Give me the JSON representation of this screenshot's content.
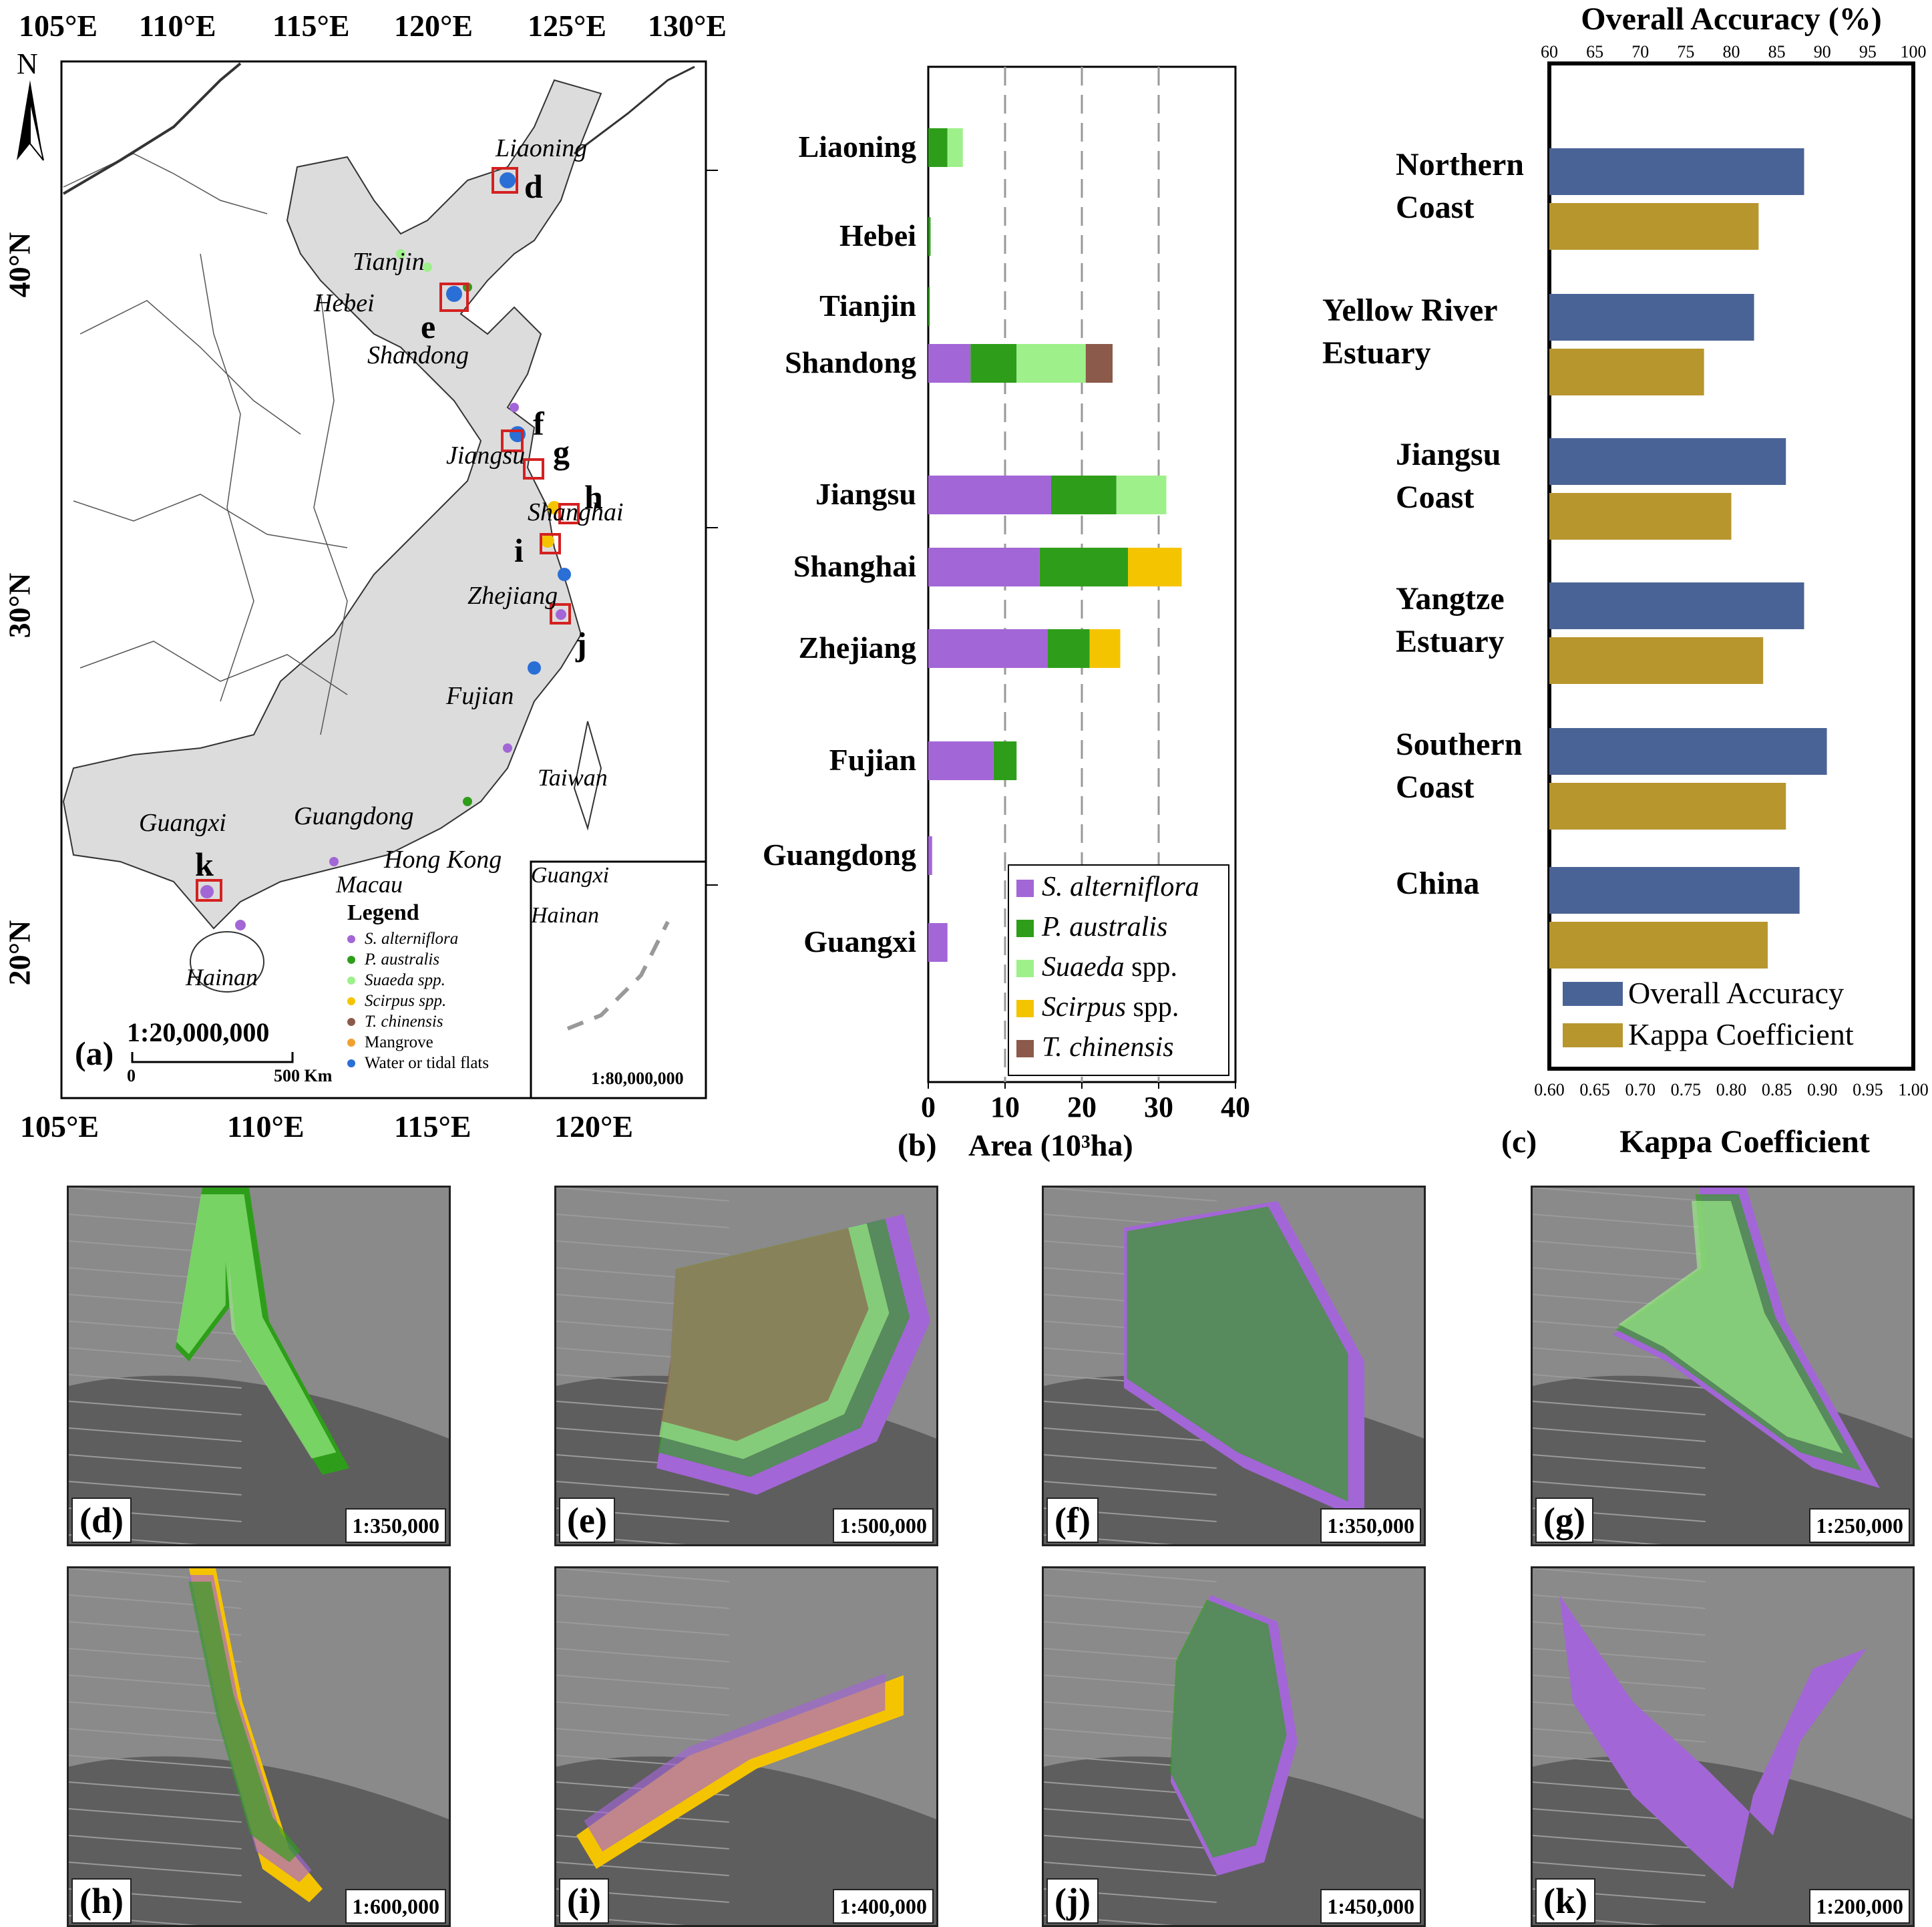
{
  "map": {
    "panel_label": "(a)",
    "top_lon": [
      "105°E",
      "110°E",
      "115°E",
      "120°E",
      "125°E",
      "130°E"
    ],
    "bottom_lon": [
      "105°E",
      "110°E",
      "115°E",
      "120°E"
    ],
    "lat": [
      "40°N",
      "30°N",
      "20°N"
    ],
    "north": "N",
    "provinces": [
      "Liaoning",
      "Tianjin",
      "Hebei",
      "Shandong",
      "Jiangsu",
      "Shanghai",
      "Zhejiang",
      "Fujian",
      "Taiwan",
      "Guangxi",
      "Guangdong",
      "Hong Kong",
      "Macau",
      "Hainan"
    ],
    "site_letters": [
      "d",
      "e",
      "f",
      "g",
      "h",
      "i",
      "j",
      "k"
    ],
    "legend_title": "Legend",
    "legend": [
      {
        "label": "S. alterniflora",
        "color": "#a366d6",
        "italic": true
      },
      {
        "label": "P. australis",
        "color": "#2e9e1a",
        "italic": true
      },
      {
        "label": "Suaeda spp.",
        "color": "#9ef08a",
        "italic": true
      },
      {
        "label": "Scirpus spp.",
        "color": "#f5c400",
        "italic": true
      },
      {
        "label": "T. chinensis",
        "color": "#8b5a4a",
        "italic": true
      },
      {
        "label": "Mangrove",
        "color": "#f0a030",
        "italic": false
      },
      {
        "label": "Water or tidal flats",
        "color": "#2a6fd6",
        "italic": false
      }
    ],
    "scale_ratio": "1:20,000,000",
    "scale_start": "0",
    "scale_end": "500 Km",
    "inset_labels": [
      "Guangxi",
      "Hainan"
    ],
    "inset_scale": "1:80,000,000"
  },
  "panel_b": {
    "panel_label": "(b)",
    "xlabel": "Area (10³ha)",
    "xticks": [
      "0",
      "10",
      "20",
      "30",
      "40"
    ]
  },
  "panel_c": {
    "panel_label": "(c)",
    "top_title": "Overall Accuracy (%)",
    "top_ticks": [
      "60",
      "65",
      "70",
      "75",
      "80",
      "85",
      "90",
      "95",
      "100"
    ],
    "bottom_title": "Kappa Coefficient",
    "bottom_ticks": [
      "0.60",
      "0.65",
      "0.70",
      "0.75",
      "0.80",
      "0.85",
      "0.90",
      "0.95",
      "1.00"
    ]
  },
  "chart_data": [
    {
      "type": "bar",
      "orientation": "horizontal",
      "stacked": true,
      "xlabel": "Area (10³ha)",
      "xlim": [
        0,
        40
      ],
      "grid": "dashed vertical at 10, 20, 30",
      "legend_position": "bottom-right",
      "categories": [
        "Liaoning",
        "Hebei",
        "Tianjin",
        "Shandong",
        "Jiangsu",
        "Shanghai",
        "Zhejiang",
        "Fujian",
        "Guangdong",
        "Guangxi"
      ],
      "series": [
        {
          "name": "S. alterniflora",
          "color": "#a366d6",
          "values": [
            0,
            0,
            0,
            5.5,
            16,
            14.5,
            15.5,
            8.5,
            0.5,
            2.5
          ]
        },
        {
          "name": "P. australis",
          "color": "#2e9e1a",
          "values": [
            2.5,
            0.3,
            0.2,
            6,
            8.5,
            11.5,
            5.5,
            3,
            0,
            0
          ]
        },
        {
          "name": "Suaeda spp.",
          "color": "#9ef08a",
          "values": [
            2,
            0,
            0,
            9,
            6.5,
            0,
            0,
            0,
            0,
            0
          ]
        },
        {
          "name": "Scirpus spp.",
          "color": "#f5c400",
          "values": [
            0,
            0,
            0,
            0,
            0,
            7,
            4,
            0,
            0,
            0
          ]
        },
        {
          "name": "T. chinensis",
          "color": "#8b5a4a",
          "values": [
            0,
            0,
            0,
            3.5,
            0,
            0,
            0,
            0,
            0,
            0
          ]
        }
      ]
    },
    {
      "type": "bar",
      "orientation": "horizontal",
      "xlabel_top": "Overall Accuracy (%)",
      "xlim_top": [
        60,
        100
      ],
      "xlabel_bottom": "Kappa Coefficient",
      "xlim_bottom": [
        0.6,
        1.0
      ],
      "legend_position": "bottom-right",
      "categories": [
        [
          "Northern",
          "Coast"
        ],
        [
          "Yellow River",
          "Estuary"
        ],
        [
          "Jiangsu",
          "Coast"
        ],
        [
          "Yangtze",
          "Estuary"
        ],
        [
          "Southern",
          "Coast"
        ],
        [
          "China"
        ]
      ],
      "series": [
        {
          "name": "Overall Accuracy",
          "color": "#4a6396",
          "axis": "top",
          "values": [
            88,
            82.5,
            86,
            88,
            90.5,
            87.5
          ]
        },
        {
          "name": "Kappa Coefficient",
          "color": "#b8962e",
          "axis": "bottom",
          "values": [
            0.83,
            0.77,
            0.8,
            0.835,
            0.86,
            0.84
          ]
        }
      ]
    }
  ],
  "tiles": [
    {
      "label": "(d)",
      "scale": "1:350,000"
    },
    {
      "label": "(e)",
      "scale": "1:500,000"
    },
    {
      "label": "(f)",
      "scale": "1:350,000"
    },
    {
      "label": "(g)",
      "scale": "1:250,000"
    },
    {
      "label": "(h)",
      "scale": "1:600,000"
    },
    {
      "label": "(i)",
      "scale": "1:400,000"
    },
    {
      "label": "(j)",
      "scale": "1:450,000"
    },
    {
      "label": "(k)",
      "scale": "1:200,000"
    }
  ]
}
